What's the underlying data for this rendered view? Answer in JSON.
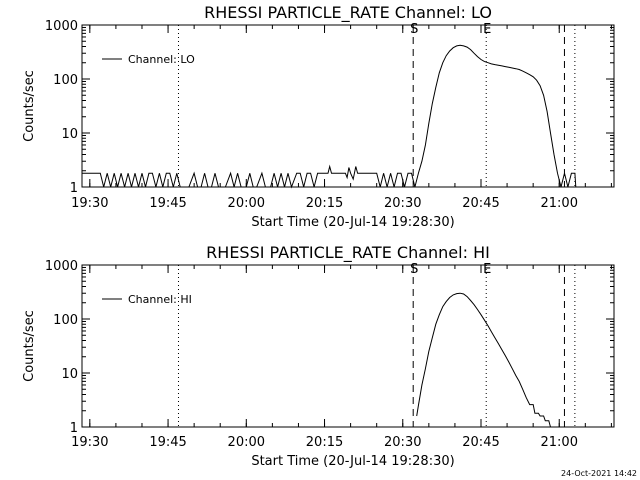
{
  "footer_timestamp": "24-Oct-2021 14:42",
  "colors": {
    "background": "#ffffff",
    "foreground": "#000000"
  },
  "chart_data": [
    {
      "type": "line",
      "title": "RHESSI PARTICLE_RATE Channel: LO",
      "xlabel": "Start Time (20-Jul-14 19:28:30)",
      "ylabel": "Counts/sec",
      "y_scale": "log",
      "ylim": [
        1,
        1000
      ],
      "y_ticks": [
        {
          "value": 1,
          "label": "1"
        },
        {
          "value": 10,
          "label": "10"
        },
        {
          "value": 100,
          "label": "100"
        },
        {
          "value": 1000,
          "label": "1000"
        }
      ],
      "xlim": [
        "19:28:30",
        "21:10:30"
      ],
      "x_ticks": [
        "19:30",
        "19:45",
        "20:00",
        "20:15",
        "20:30",
        "20:45",
        "21:00"
      ],
      "legend": {
        "label": "Channel: LO",
        "position": "top-left"
      },
      "markers": [
        {
          "label": "S",
          "time": "20:32",
          "style": "dashed"
        },
        {
          "label": "E",
          "time": "20:46",
          "style": "dotted"
        }
      ],
      "vlines": [
        {
          "time": "19:47",
          "style": "dotted"
        },
        {
          "time": "21:01",
          "style": "dashed"
        },
        {
          "time": "21:03",
          "style": "dotted"
        }
      ],
      "series": [
        {
          "name": "Channel: LO",
          "points": [
            [
              "19:28:30",
              1.8
            ],
            [
              "19:32:00",
              1.8
            ],
            [
              "19:32:40",
              1
            ],
            [
              "19:33:20",
              1.8
            ],
            [
              "19:34:00",
              1
            ],
            [
              "19:34:40",
              1.8
            ],
            [
              "19:35:20",
              1
            ],
            [
              "19:36:00",
              1.8
            ],
            [
              "19:36:40",
              1
            ],
            [
              "19:37:20",
              1.8
            ],
            [
              "19:38:00",
              1
            ],
            [
              "19:38:40",
              1.8
            ],
            [
              "19:39:20",
              1
            ],
            [
              "19:40:00",
              1.8
            ],
            [
              "19:40:40",
              1
            ],
            [
              "19:41:20",
              1.8
            ],
            [
              "19:42:00",
              1.8
            ],
            [
              "19:42:40",
              1
            ],
            [
              "19:43:20",
              1.8
            ],
            [
              "19:44:00",
              1
            ],
            [
              "19:44:40",
              1.8
            ],
            [
              "19:45:20",
              1.8
            ],
            [
              "19:46:00",
              1
            ],
            [
              "19:46:40",
              1.8
            ],
            [
              "19:47:20",
              1
            ],
            [
              "19:48:00",
              1
            ],
            [
              "19:49:00",
              1
            ],
            [
              "19:50:00",
              1.8
            ],
            [
              "19:50:40",
              1
            ],
            [
              "19:51:20",
              1
            ],
            [
              "19:52:00",
              1.8
            ],
            [
              "19:52:40",
              1
            ],
            [
              "19:53:20",
              1
            ],
            [
              "19:54:00",
              1.8
            ],
            [
              "19:54:40",
              1
            ],
            [
              "19:56:00",
              1
            ],
            [
              "19:57:00",
              1.8
            ],
            [
              "19:57:40",
              1
            ],
            [
              "19:58:20",
              1.8
            ],
            [
              "19:59:00",
              1
            ],
            [
              "20:00:00",
              1
            ],
            [
              "20:00:40",
              1.8
            ],
            [
              "20:01:20",
              1
            ],
            [
              "20:02:00",
              1
            ],
            [
              "20:03:00",
              1.8
            ],
            [
              "20:03:40",
              1
            ],
            [
              "20:04:40",
              1
            ],
            [
              "20:05:20",
              1.8
            ],
            [
              "20:06:00",
              1
            ],
            [
              "20:06:40",
              1.8
            ],
            [
              "20:07:20",
              1
            ],
            [
              "20:08:00",
              1.8
            ],
            [
              "20:08:40",
              1
            ],
            [
              "20:09:40",
              1.8
            ],
            [
              "20:10:20",
              1.8
            ],
            [
              "20:11:00",
              1
            ],
            [
              "20:11:40",
              1.8
            ],
            [
              "20:12:20",
              1.8
            ],
            [
              "20:13:00",
              1
            ],
            [
              "20:13:40",
              1.8
            ],
            [
              "20:14:20",
              1.8
            ],
            [
              "20:15:00",
              1.8
            ],
            [
              "20:15:40",
              1.8
            ],
            [
              "20:16:00",
              2.4
            ],
            [
              "20:16:20",
              1.8
            ],
            [
              "20:19:00",
              1.8
            ],
            [
              "20:19:20",
              1.5
            ],
            [
              "20:19:40",
              2.3
            ],
            [
              "20:20:00",
              1.8
            ],
            [
              "20:20:30",
              1.4
            ],
            [
              "20:21:00",
              2.4
            ],
            [
              "20:21:20",
              1.8
            ],
            [
              "20:25:00",
              1.8
            ],
            [
              "20:25:40",
              1
            ],
            [
              "20:26:20",
              1.8
            ],
            [
              "20:27:00",
              1
            ],
            [
              "20:27:40",
              1.8
            ],
            [
              "20:28:20",
              1
            ],
            [
              "20:29:00",
              1.8
            ],
            [
              "20:29:40",
              1.8
            ],
            [
              "20:30:20",
              1
            ],
            [
              "20:31:00",
              1.8
            ],
            [
              "20:31:40",
              1.8
            ],
            [
              "20:32:20",
              1
            ],
            [
              "20:33:00",
              1.8
            ],
            [
              "20:33:40",
              3
            ],
            [
              "20:34:20",
              6
            ],
            [
              "20:35:00",
              15
            ],
            [
              "20:35:40",
              35
            ],
            [
              "20:36:20",
              70
            ],
            [
              "20:37:00",
              130
            ],
            [
              "20:37:40",
              200
            ],
            [
              "20:38:20",
              270
            ],
            [
              "20:39:00",
              330
            ],
            [
              "20:39:40",
              380
            ],
            [
              "20:40:20",
              410
            ],
            [
              "20:41:00",
              420
            ],
            [
              "20:41:40",
              410
            ],
            [
              "20:42:20",
              390
            ],
            [
              "20:43:00",
              350
            ],
            [
              "20:43:40",
              300
            ],
            [
              "20:44:20",
              260
            ],
            [
              "20:45:00",
              230
            ],
            [
              "20:45:40",
              210
            ],
            [
              "20:46:20",
              200
            ],
            [
              "20:47:00",
              190
            ],
            [
              "20:47:40",
              185
            ],
            [
              "20:48:20",
              180
            ],
            [
              "20:49:00",
              175
            ],
            [
              "20:49:40",
              170
            ],
            [
              "20:50:20",
              165
            ],
            [
              "20:51:00",
              160
            ],
            [
              "20:51:40",
              155
            ],
            [
              "20:52:20",
              150
            ],
            [
              "20:53:00",
              140
            ],
            [
              "20:53:40",
              130
            ],
            [
              "20:54:20",
              120
            ],
            [
              "20:55:00",
              110
            ],
            [
              "20:55:40",
              95
            ],
            [
              "20:56:20",
              75
            ],
            [
              "20:57:00",
              50
            ],
            [
              "20:57:40",
              25
            ],
            [
              "20:58:20",
              10
            ],
            [
              "20:59:00",
              4
            ],
            [
              "20:59:40",
              1.8
            ],
            [
              "21:00:20",
              1
            ],
            [
              "21:01:00",
              1.8
            ],
            [
              "21:01:40",
              1
            ],
            [
              "21:02:20",
              1.8
            ],
            [
              "21:03:00",
              1.8
            ],
            [
              "21:03:10",
              1
            ]
          ]
        }
      ]
    },
    {
      "type": "line",
      "title": "RHESSI PARTICLE_RATE Channel: HI",
      "xlabel": "Start Time (20-Jul-14 19:28:30)",
      "ylabel": "Counts/sec",
      "y_scale": "log",
      "ylim": [
        1,
        1000
      ],
      "y_ticks": [
        {
          "value": 1,
          "label": "1"
        },
        {
          "value": 10,
          "label": "10"
        },
        {
          "value": 100,
          "label": "100"
        },
        {
          "value": 1000,
          "label": "1000"
        }
      ],
      "xlim": [
        "19:28:30",
        "21:10:30"
      ],
      "x_ticks": [
        "19:30",
        "19:45",
        "20:00",
        "20:15",
        "20:30",
        "20:45",
        "21:00"
      ],
      "legend": {
        "label": "Channel: HI",
        "position": "top-left"
      },
      "markers": [
        {
          "label": "S",
          "time": "20:32",
          "style": "dashed"
        },
        {
          "label": "E",
          "time": "20:46",
          "style": "dotted"
        }
      ],
      "vlines": [
        {
          "time": "19:47",
          "style": "dotted"
        },
        {
          "time": "21:01",
          "style": "dashed"
        },
        {
          "time": "21:03",
          "style": "dotted"
        }
      ],
      "series": [
        {
          "name": "Channel: HI",
          "points": [
            [
              "20:32:40",
              1.6
            ],
            [
              "20:33:00",
              2.5
            ],
            [
              "20:33:40",
              6
            ],
            [
              "20:34:20",
              12
            ],
            [
              "20:35:00",
              25
            ],
            [
              "20:35:40",
              45
            ],
            [
              "20:36:20",
              80
            ],
            [
              "20:37:00",
              120
            ],
            [
              "20:37:40",
              170
            ],
            [
              "20:38:20",
              210
            ],
            [
              "20:39:00",
              250
            ],
            [
              "20:39:40",
              280
            ],
            [
              "20:40:20",
              295
            ],
            [
              "20:41:00",
              300
            ],
            [
              "20:41:40",
              290
            ],
            [
              "20:42:20",
              260
            ],
            [
              "20:43:00",
              220
            ],
            [
              "20:43:40",
              185
            ],
            [
              "20:44:20",
              150
            ],
            [
              "20:45:00",
              120
            ],
            [
              "20:45:40",
              95
            ],
            [
              "20:46:20",
              75
            ],
            [
              "20:47:00",
              58
            ],
            [
              "20:47:40",
              45
            ],
            [
              "20:48:20",
              35
            ],
            [
              "20:49:00",
              27
            ],
            [
              "20:49:40",
              21
            ],
            [
              "20:50:20",
              16
            ],
            [
              "20:51:00",
              12
            ],
            [
              "20:51:40",
              9
            ],
            [
              "20:52:20",
              7
            ],
            [
              "20:53:00",
              5
            ],
            [
              "20:53:40",
              3.5
            ],
            [
              "20:54:20",
              2.6
            ],
            [
              "20:55:00",
              2.6
            ],
            [
              "20:55:20",
              1.8
            ],
            [
              "20:56:00",
              1.8
            ],
            [
              "20:56:20",
              1.6
            ],
            [
              "20:57:00",
              1.6
            ],
            [
              "20:57:20",
              1.3
            ],
            [
              "20:58:00",
              1.3
            ],
            [
              "20:58:20",
              1
            ]
          ]
        }
      ]
    }
  ]
}
